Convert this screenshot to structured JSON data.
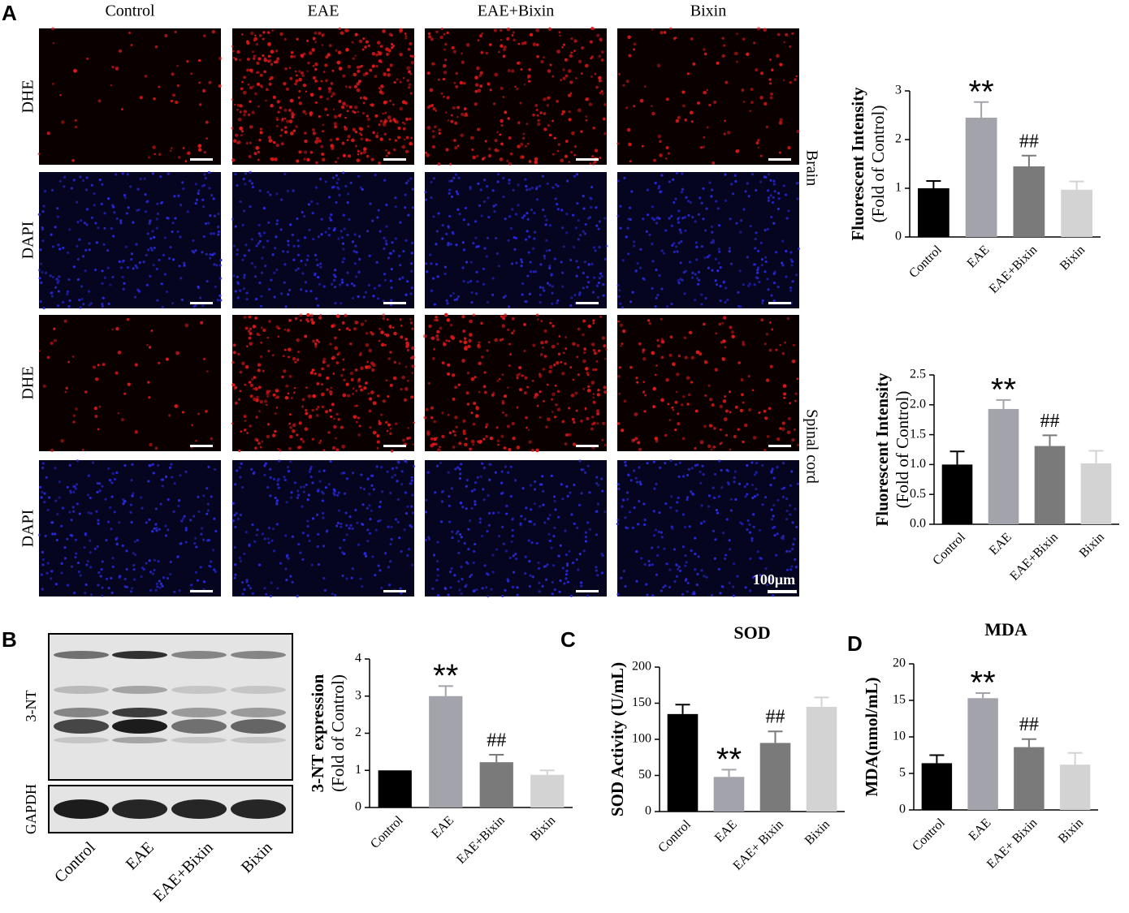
{
  "panel_labels": [
    "A",
    "B",
    "C",
    "D"
  ],
  "microscopy": {
    "columns": [
      "Control",
      "EAE",
      "EAE+Bixin",
      "Bixin"
    ],
    "rows": [
      "DHE",
      "DAPI",
      "DHE",
      "DAPI"
    ],
    "tissues": [
      "Brain",
      "Spinal cord"
    ],
    "scale_bar": "100μm"
  },
  "western_blot": {
    "bands": [
      "3-NT",
      "GAPDH"
    ],
    "lanes": [
      "Control",
      "EAE",
      "EAE+Bixin",
      "Bixin"
    ]
  },
  "chart_data": [
    {
      "type": "bar",
      "ylabel": [
        "Fluorescent Intensity",
        "(Fold of Control)"
      ],
      "categories": [
        "Control",
        "EAE",
        "EAE+Bixin",
        "Bixin"
      ],
      "values": [
        1.0,
        2.45,
        1.45,
        0.97
      ],
      "errors": [
        0.15,
        0.32,
        0.22,
        0.17
      ],
      "colors": [
        "#000000",
        "#a3a3ab",
        "#7a7a7a",
        "#d3d3d3"
      ],
      "annotations": [
        null,
        "**",
        "##",
        null
      ],
      "ylim": [
        0,
        3
      ],
      "yticks": [
        0,
        1,
        2,
        3
      ]
    },
    {
      "type": "bar",
      "ylabel": [
        "Fluorescent Intensity",
        "(Fold of Control)"
      ],
      "categories": [
        "Control",
        "EAE",
        "EAE+Bixin",
        "Bixin"
      ],
      "values": [
        1.0,
        1.93,
        1.31,
        1.02
      ],
      "errors": [
        0.22,
        0.15,
        0.18,
        0.21
      ],
      "colors": [
        "#000000",
        "#a3a3ab",
        "#7a7a7a",
        "#d3d3d3"
      ],
      "annotations": [
        null,
        "**",
        "##",
        null
      ],
      "ylim": [
        0,
        2.5
      ],
      "yticks": [
        {
          "value": 0,
          "label": "0.0"
        },
        {
          "value": 0.5,
          "label": "0.5"
        },
        {
          "value": 1,
          "label": "1.0"
        },
        {
          "value": 1.5,
          "label": "1.5"
        },
        {
          "value": 2,
          "label": "2.0"
        },
        2.5
      ]
    },
    {
      "type": "bar",
      "ylabel": [
        "3-NT expression",
        "(Fold of Control)"
      ],
      "categories": [
        "Control",
        "EAE",
        "EAE+Bixin",
        "Bixin"
      ],
      "values": [
        1.0,
        3.0,
        1.22,
        0.88
      ],
      "errors": [
        0,
        0.27,
        0.2,
        0.12
      ],
      "colors": [
        "#000000",
        "#a3a3ab",
        "#7a7a7a",
        "#d3d3d3"
      ],
      "annotations": [
        null,
        "**",
        "##",
        null
      ],
      "ylim": [
        0,
        4
      ],
      "yticks": [
        0,
        1,
        2,
        3,
        4
      ]
    },
    {
      "type": "bar",
      "title": "SOD",
      "ylabel": [
        "SOD Activity (U/mL)"
      ],
      "categories": [
        "Control",
        "EAE",
        "EAE+ Bixin",
        "Bixin"
      ],
      "values": [
        135,
        48,
        95,
        145
      ],
      "errors": [
        13,
        10,
        16,
        13
      ],
      "colors": [
        "#000000",
        "#a3a3ab",
        "#7a7a7a",
        "#d3d3d3"
      ],
      "annotations": [
        null,
        "**",
        "##",
        null
      ],
      "ylim": [
        0,
        200
      ],
      "yticks": [
        0,
        50,
        100,
        150,
        200
      ]
    },
    {
      "type": "bar",
      "title": "MDA",
      "ylabel": [
        "MDA(nmol/mL)"
      ],
      "categories": [
        "Control",
        "EAE",
        "EAE+ Bixin",
        "Bixin"
      ],
      "values": [
        6.4,
        15.3,
        8.6,
        6.2
      ],
      "errors": [
        1.1,
        0.7,
        1.1,
        1.6
      ],
      "colors": [
        "#000000",
        "#a3a3ab",
        "#7a7a7a",
        "#d3d3d3"
      ],
      "annotations": [
        null,
        "**",
        "##",
        null
      ],
      "ylim": [
        0,
        20
      ],
      "yticks": [
        0,
        5,
        10,
        15,
        20
      ]
    }
  ]
}
